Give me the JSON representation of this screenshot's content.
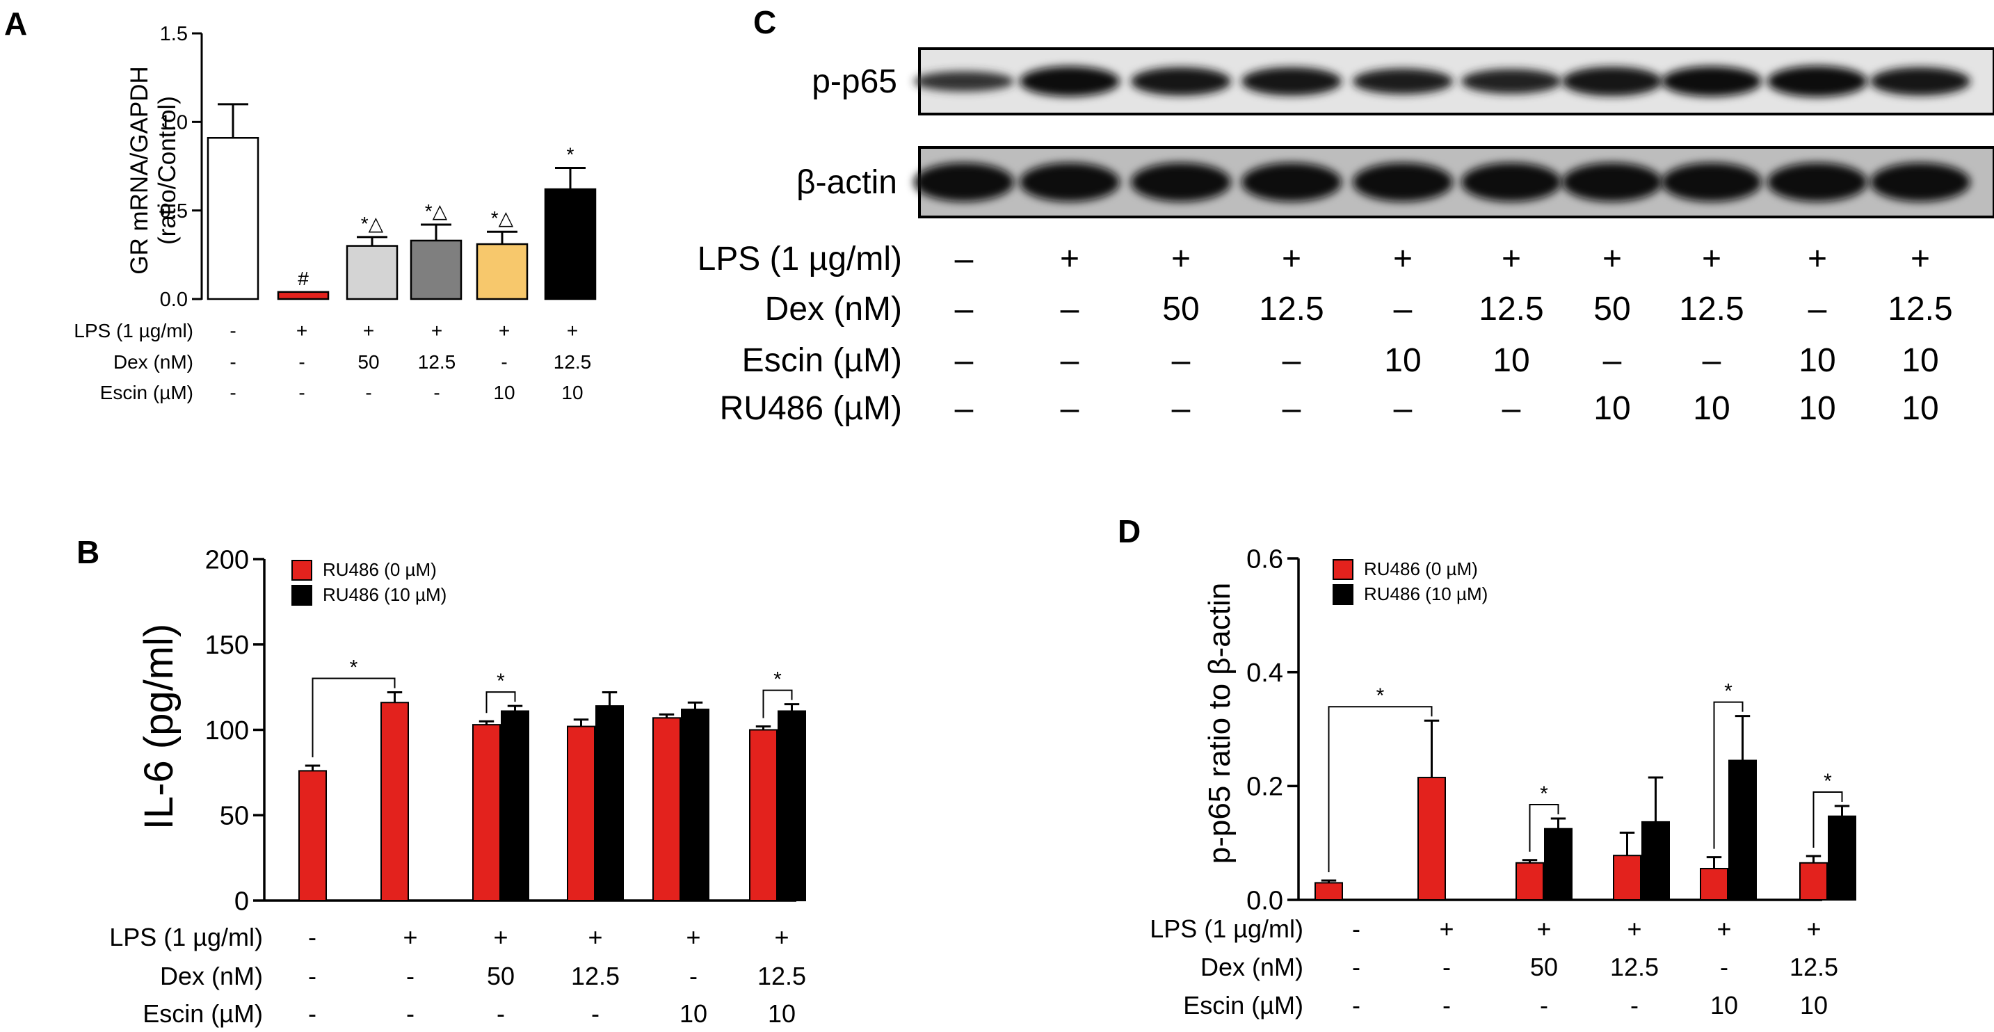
{
  "panel_labels": {
    "a": "A",
    "b": "B",
    "c": "C",
    "d": "D"
  },
  "chart_data": [
    {
      "id": "A",
      "type": "bar",
      "ylabel_line1": "GR mRNA/GAPDH",
      "ylabel_line2": "(ratio/Control)",
      "ylim": [
        0,
        1.5
      ],
      "yticks": [
        "0.0",
        "0.5",
        "1.0",
        "1.5"
      ],
      "bars": [
        {
          "value": 0.91,
          "error": 0.19,
          "color": "#ffffff",
          "annotation": ""
        },
        {
          "value": 0.04,
          "error": 0.0,
          "color": "#e3221d",
          "annotation": "#"
        },
        {
          "value": 0.3,
          "error": 0.05,
          "color": "#d4d4d4",
          "annotation": "*△"
        },
        {
          "value": 0.33,
          "error": 0.09,
          "color": "#7f7f7f",
          "annotation": "*△"
        },
        {
          "value": 0.31,
          "error": 0.07,
          "color": "#f7c86c",
          "annotation": "*△"
        },
        {
          "value": 0.62,
          "error": 0.12,
          "color": "#000000",
          "annotation": "*"
        }
      ],
      "conditions": [
        {
          "label": "LPS (1 µg/ml)",
          "values": [
            "-",
            "+",
            "+",
            "+",
            "+",
            "+"
          ]
        },
        {
          "label": "Dex (nM)",
          "values": [
            "-",
            "-",
            "50",
            "12.5",
            "-",
            "12.5"
          ]
        },
        {
          "label": "Escin (µM)",
          "values": [
            "-",
            "-",
            "-",
            "-",
            "10",
            "10"
          ]
        }
      ]
    },
    {
      "id": "B",
      "type": "bar",
      "ylabel": "IL-6 (pg/ml)",
      "ylim": [
        0,
        200
      ],
      "yticks": [
        "0",
        "50",
        "100",
        "150",
        "200"
      ],
      "series": [
        {
          "name": "RU486 (0 µM)",
          "color": "#e3221d",
          "values": [
            76,
            116,
            103,
            102,
            107,
            100
          ],
          "errors": [
            3,
            6,
            2,
            4,
            2,
            2
          ]
        },
        {
          "name": "RU486 (10 µM)",
          "color": "#000000",
          "values": [
            null,
            null,
            111,
            114,
            112,
            111
          ],
          "errors": [
            null,
            null,
            3,
            8,
            4,
            4
          ]
        }
      ],
      "significance": [
        {
          "from_group": 0,
          "from_series": 0,
          "to_group": 1,
          "to_series": 0,
          "label": "*"
        },
        {
          "from_group": 2,
          "from_series": 0,
          "to_group": 2,
          "to_series": 1,
          "label": "*"
        },
        {
          "from_group": 5,
          "from_series": 0,
          "to_group": 5,
          "to_series": 1,
          "label": "*"
        }
      ],
      "conditions": [
        {
          "label": "LPS (1 µg/ml)",
          "values": [
            "-",
            "+",
            "+",
            "+",
            "+",
            "+"
          ]
        },
        {
          "label": "Dex (nM)",
          "values": [
            "-",
            "-",
            "50",
            "12.5",
            "-",
            "12.5"
          ]
        },
        {
          "label": "Escin (µM)",
          "values": [
            "-",
            "-",
            "-",
            "-",
            "10",
            "10"
          ]
        }
      ]
    },
    {
      "id": "D",
      "type": "bar",
      "ylabel": "p-p65 ratio to  β-actin",
      "ylim": [
        0,
        0.6
      ],
      "yticks": [
        "0.0",
        "0.2",
        "0.4",
        "0.6"
      ],
      "series": [
        {
          "name": "RU486 (0 µM)",
          "color": "#e3221d",
          "values": [
            0.03,
            0.215,
            0.065,
            0.078,
            0.055,
            0.065
          ],
          "errors": [
            0.004,
            0.1,
            0.005,
            0.04,
            0.02,
            0.012
          ]
        },
        {
          "name": "RU486 (10 µM)",
          "color": "#000000",
          "values": [
            null,
            null,
            0.125,
            0.137,
            0.245,
            0.147
          ],
          "errors": [
            null,
            null,
            0.018,
            0.078,
            0.078,
            0.018
          ]
        }
      ],
      "significance": [
        {
          "from_group": 0,
          "from_series": 0,
          "to_group": 1,
          "to_series": 0,
          "label": "*"
        },
        {
          "from_group": 2,
          "from_series": 0,
          "to_group": 2,
          "to_series": 1,
          "label": "*"
        },
        {
          "from_group": 4,
          "from_series": 0,
          "to_group": 4,
          "to_series": 1,
          "label": "*"
        },
        {
          "from_group": 5,
          "from_series": 0,
          "to_group": 5,
          "to_series": 1,
          "label": "*"
        }
      ],
      "conditions": [
        {
          "label": "LPS (1 µg/ml)",
          "values": [
            "-",
            "+",
            "+",
            "+",
            "+",
            "+"
          ]
        },
        {
          "label": "Dex (nM)",
          "values": [
            "-",
            "-",
            "50",
            "12.5",
            "-",
            "12.5"
          ]
        },
        {
          "label": "Escin (µM)",
          "values": [
            "-",
            "-",
            "-",
            "-",
            "10",
            "10"
          ]
        }
      ]
    }
  ],
  "blot": {
    "bands": [
      {
        "label": "p-p65",
        "intensity": [
          0.35,
          0.9,
          0.8,
          0.8,
          0.65,
          0.6,
          0.85,
          0.9,
          0.95,
          0.8
        ]
      },
      {
        "label": "β-actin",
        "intensity": [
          1,
          1,
          1,
          1,
          1,
          1,
          1,
          1,
          1,
          1
        ]
      }
    ],
    "conditions": [
      {
        "label": "LPS (1 µg/ml)",
        "values": [
          "–",
          "+",
          "+",
          "+",
          "+",
          "+",
          "+",
          "+",
          "+",
          "+"
        ]
      },
      {
        "label": "Dex (nM)",
        "values": [
          "–",
          "–",
          "50",
          "12.5",
          "–",
          "12.5",
          "50",
          "12.5",
          "–",
          "12.5"
        ]
      },
      {
        "label": "Escin (µM)",
        "values": [
          "–",
          "–",
          "–",
          "–",
          "10",
          "10",
          "–",
          "–",
          "10",
          "10"
        ]
      },
      {
        "label": "RU486 (µM)",
        "values": [
          "–",
          "–",
          "–",
          "–",
          "–",
          "–",
          "10",
          "10",
          "10",
          "10"
        ]
      }
    ]
  }
}
